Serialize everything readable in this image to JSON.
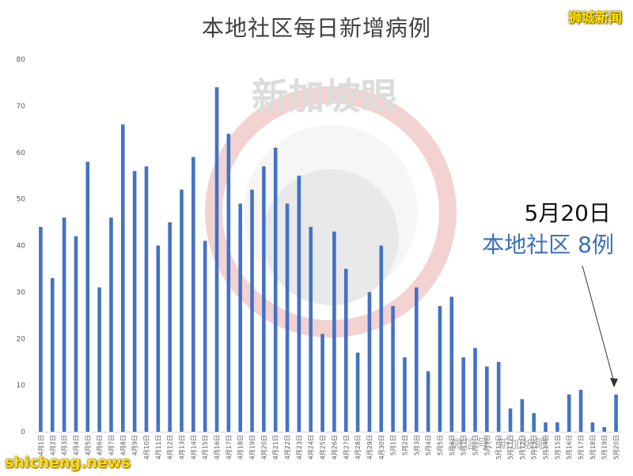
{
  "title": "本地社区每日新增病例",
  "brand": "狮城新闻",
  "annotation": {
    "date": "5月20日",
    "cases": "本地社区 8例"
  },
  "watermarks": {
    "center_logo": "新加坡眼",
    "wechat": "微信号: 新加坡眼",
    "source": "shicheng.news"
  },
  "colors": {
    "bar": "#4472c4",
    "annotation_blue": "#3d6fb6",
    "title": "#404040"
  },
  "chart_data": {
    "type": "bar",
    "title": "本地社区每日新增病例",
    "xlabel": "",
    "ylabel": "",
    "ylim": [
      0,
      80
    ],
    "yticks": [
      0,
      10,
      20,
      30,
      40,
      50,
      60,
      70,
      80
    ],
    "grid": false,
    "categories": [
      "4月1日",
      "4月2日",
      "4月3日",
      "4月4日",
      "4月5日",
      "4月6日",
      "4月7日",
      "4月8日",
      "4月9日",
      "4月10日",
      "4月11日",
      "4月12日",
      "4月13日",
      "4月14日",
      "4月15日",
      "4月16日",
      "4月17日",
      "4月18日",
      "4月19日",
      "4月20日",
      "4月21日",
      "4月22日",
      "4月23日",
      "4月24日",
      "4月25日",
      "4月26日",
      "4月27日",
      "4月28日",
      "4月29日",
      "4月30日",
      "5月1日",
      "5月2日",
      "5月3日",
      "5月4日",
      "5月5日",
      "5月6日",
      "5月7日",
      "5月8日",
      "5月9日",
      "5月10日",
      "5月11日",
      "5月12日",
      "5月13日",
      "5月14日",
      "5月15日",
      "5月16日",
      "5月17日",
      "5月18日",
      "5月19日",
      "5月20日"
    ],
    "values": [
      44,
      33,
      46,
      42,
      58,
      31,
      46,
      66,
      56,
      57,
      40,
      45,
      52,
      59,
      41,
      74,
      64,
      49,
      52,
      57,
      61,
      49,
      55,
      44,
      21,
      43,
      35,
      17,
      30,
      40,
      27,
      16,
      31,
      13,
      27,
      29,
      16,
      18,
      14,
      15,
      5,
      7,
      4,
      2,
      2,
      8,
      9,
      2,
      1,
      8
    ]
  }
}
